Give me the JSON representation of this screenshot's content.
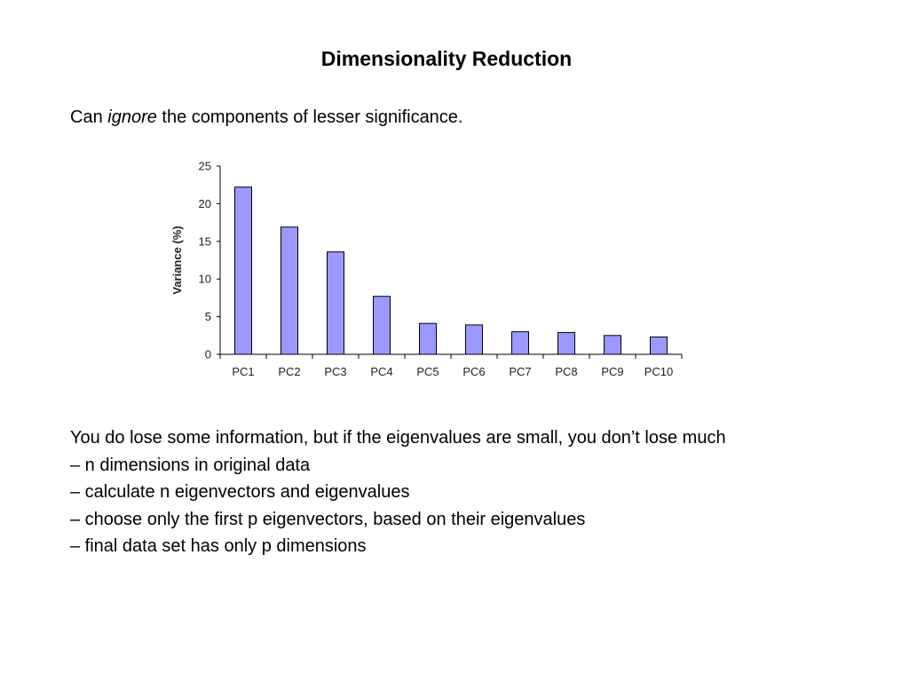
{
  "slide": {
    "title": "Dimensionality Reduction",
    "intro": {
      "before": "Can ",
      "emphasis": "ignore",
      "after": " the components of lesser significance."
    },
    "body": {
      "paragraph": "You do lose some information, but if the eigenvalues are small, you don’t lose much",
      "bullets": [
        "– n dimensions in original data",
        "– calculate n eigenvectors and eigenvalues",
        "– choose only the first p eigenvectors, based on their eigenvalues",
        "– final data set has only p dimensions"
      ]
    }
  },
  "chart_data": {
    "type": "bar",
    "categories": [
      "PC1",
      "PC2",
      "PC3",
      "PC4",
      "PC5",
      "PC6",
      "PC7",
      "PC8",
      "PC9",
      "PC10"
    ],
    "values": [
      22.2,
      16.9,
      13.6,
      7.7,
      4.1,
      3.9,
      3.0,
      2.9,
      2.5,
      2.3
    ],
    "ylabel": "Variance (%)",
    "xlabel": "",
    "ylim": [
      0,
      25
    ],
    "yticks": [
      0,
      5,
      10,
      15,
      20,
      25
    ],
    "grid": false,
    "bar_color": "#9999ff",
    "bar_edge_color": "#000000"
  }
}
